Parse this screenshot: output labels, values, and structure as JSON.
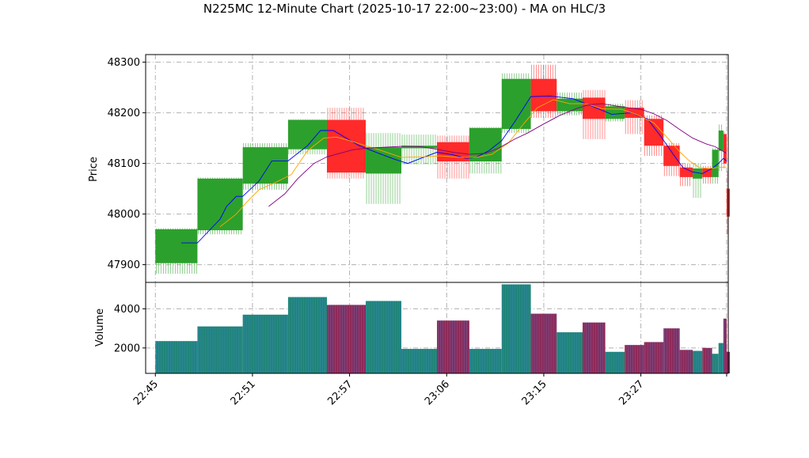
{
  "chart_data": {
    "type": "candlestick",
    "title": "N225MC 12-Minute Chart (2025-10-17 22:00~23:00) - MA on HLC/3",
    "price_panel": {
      "ylabel": "Price",
      "ylim": [
        47865,
        48315
      ],
      "yticks": [
        47900,
        48000,
        48100,
        48200,
        48300
      ],
      "ytick_labels": [
        "47900",
        "48000",
        "48100",
        "48200",
        "48300"
      ]
    },
    "volume_panel": {
      "ylabel": "Volume",
      "ylim": [
        700,
        5350
      ],
      "yticks": [
        2000,
        4000
      ],
      "ytick_labels": [
        "2000",
        "4000"
      ]
    },
    "xlim": [
      -3,
      177
    ],
    "xticks": [
      0,
      30,
      60,
      90,
      120,
      150
    ],
    "xtick_labels": [
      "22:45",
      "22:51",
      "22:57",
      "23:06",
      "23:15",
      "23:27"
    ],
    "grid": true,
    "colors": {
      "up": "#2ca02c",
      "down": "#ff2a2a",
      "volume_up": "#20847a",
      "volume_down": "#8c2a5a",
      "ma_short": "#0000ff",
      "ma_mid": "#ffa500",
      "ma_long": "#800080",
      "grid": "#b0b0b0"
    },
    "candles": [
      {
        "x0": 0,
        "x1": 13,
        "open": 47903,
        "close": 47970,
        "high": 47972,
        "low": 47882,
        "volume": 2350
      },
      {
        "x0": 13,
        "x1": 27,
        "open": 47968,
        "close": 48070,
        "high": 48072,
        "low": 47960,
        "volume": 3100
      },
      {
        "x0": 27,
        "x1": 41,
        "open": 48060,
        "close": 48132,
        "high": 48140,
        "low": 48048,
        "volume": 3700
      },
      {
        "x0": 41,
        "x1": 53,
        "open": 48128,
        "close": 48186,
        "high": 48187,
        "low": 48118,
        "volume": 4600
      },
      {
        "x0": 53,
        "x1": 65,
        "open": 48186,
        "close": 48082,
        "high": 48210,
        "low": 48070,
        "volume": 4200
      },
      {
        "x0": 65,
        "x1": 76,
        "open": 48080,
        "close": 48132,
        "high": 48160,
        "low": 48020,
        "volume": 4400
      },
      {
        "x0": 76,
        "x1": 87,
        "open": 48130,
        "close": 48135,
        "high": 48157,
        "low": 48098,
        "volume": 1950
      },
      {
        "x0": 87,
        "x1": 97,
        "open": 48142,
        "close": 48104,
        "high": 48155,
        "low": 48070,
        "volume": 3400
      },
      {
        "x0": 97,
        "x1": 107,
        "open": 48104,
        "close": 48170,
        "high": 48172,
        "low": 48080,
        "volume": 1950
      },
      {
        "x0": 107,
        "x1": 116,
        "open": 48168,
        "close": 48267,
        "high": 48278,
        "low": 48160,
        "volume": 5250
      },
      {
        "x0": 116,
        "x1": 124,
        "open": 48267,
        "close": 48203,
        "high": 48295,
        "low": 48190,
        "volume": 3750
      },
      {
        "x0": 124,
        "x1": 132,
        "open": 48203,
        "close": 48228,
        "high": 48240,
        "low": 48195,
        "volume": 2800
      },
      {
        "x0": 132,
        "x1": 139,
        "open": 48230,
        "close": 48188,
        "high": 48245,
        "low": 48148,
        "volume": 3300
      },
      {
        "x0": 139,
        "x1": 145,
        "open": 48188,
        "close": 48213,
        "high": 48218,
        "low": 48183,
        "volume": 1800
      },
      {
        "x0": 145,
        "x1": 151,
        "open": 48210,
        "close": 48190,
        "high": 48225,
        "low": 48158,
        "volume": 2150
      },
      {
        "x0": 151,
        "x1": 157,
        "open": 48188,
        "close": 48135,
        "high": 48195,
        "low": 48115,
        "volume": 2300
      },
      {
        "x0": 157,
        "x1": 162,
        "open": 48135,
        "close": 48095,
        "high": 48140,
        "low": 48075,
        "volume": 3000
      },
      {
        "x0": 162,
        "x1": 166,
        "open": 48092,
        "close": 48073,
        "high": 48100,
        "low": 48055,
        "volume": 1900
      },
      {
        "x0": 166,
        "x1": 169,
        "open": 48070,
        "close": 48090,
        "high": 48100,
        "low": 48032,
        "volume": 1850
      },
      {
        "x0": 169,
        "x1": 172,
        "open": 48090,
        "close": 48073,
        "high": 48095,
        "low": 48060,
        "volume": 2000
      },
      {
        "x0": 172,
        "x1": 174,
        "open": 48073,
        "close": 48127,
        "high": 48130,
        "low": 48060,
        "volume": 1700
      },
      {
        "x0": 174,
        "x1": 175.5,
        "open": 48125,
        "close": 48165,
        "high": 48177,
        "low": 48085,
        "volume": 2250
      },
      {
        "x0": 175.5,
        "x1": 176.5,
        "open": 48158,
        "close": 48100,
        "high": 48163,
        "low": 48090,
        "volume": 3500
      },
      {
        "x0": 176.5,
        "x1": 177.5,
        "open": 48050,
        "close": 47995,
        "high": 48085,
        "low": 47960,
        "volume": 1800
      }
    ],
    "moving_averages": [
      {
        "label": "short",
        "color": "#0000ff",
        "points": [
          [
            8,
            47943
          ],
          [
            13,
            47943
          ],
          [
            20,
            47990
          ],
          [
            22,
            48015
          ],
          [
            25,
            48035
          ],
          [
            27,
            48035
          ],
          [
            32,
            48065
          ],
          [
            36,
            48105
          ],
          [
            41,
            48105
          ],
          [
            47,
            48135
          ],
          [
            51,
            48165
          ],
          [
            55,
            48165
          ],
          [
            59,
            48150
          ],
          [
            63,
            48135
          ],
          [
            69,
            48120
          ],
          [
            74,
            48108
          ],
          [
            78,
            48100
          ],
          [
            82,
            48110
          ],
          [
            87,
            48122
          ],
          [
            92,
            48117
          ],
          [
            96,
            48110
          ],
          [
            99,
            48112
          ],
          [
            103,
            48125
          ],
          [
            107,
            48145
          ],
          [
            111,
            48182
          ],
          [
            116,
            48232
          ],
          [
            122,
            48233
          ],
          [
            129,
            48228
          ],
          [
            135,
            48213
          ],
          [
            141,
            48197
          ],
          [
            147,
            48200
          ],
          [
            152,
            48188
          ],
          [
            156,
            48155
          ],
          [
            160,
            48118
          ],
          [
            163,
            48092
          ],
          [
            166,
            48083
          ],
          [
            169,
            48080
          ],
          [
            172,
            48090
          ],
          [
            174,
            48100
          ],
          [
            175.5,
            48110
          ],
          [
            176.5,
            48105
          ]
        ]
      },
      {
        "label": "mid",
        "color": "#ffa500",
        "points": [
          [
            20,
            47975
          ],
          [
            25,
            48000
          ],
          [
            28,
            48022
          ],
          [
            32,
            48048
          ],
          [
            37,
            48062
          ],
          [
            42,
            48078
          ],
          [
            47,
            48125
          ],
          [
            52,
            48150
          ],
          [
            56,
            48152
          ],
          [
            60,
            48145
          ],
          [
            64,
            48137
          ],
          [
            70,
            48125
          ],
          [
            76,
            48112
          ],
          [
            83,
            48113
          ],
          [
            88,
            48115
          ],
          [
            94,
            48112
          ],
          [
            99,
            48112
          ],
          [
            104,
            48118
          ],
          [
            109,
            48140
          ],
          [
            114,
            48180
          ],
          [
            118,
            48210
          ],
          [
            123,
            48226
          ],
          [
            128,
            48218
          ],
          [
            133,
            48218
          ],
          [
            138,
            48208
          ],
          [
            144,
            48207
          ],
          [
            149,
            48196
          ],
          [
            154,
            48180
          ],
          [
            158,
            48152
          ],
          [
            162,
            48123
          ],
          [
            165,
            48105
          ],
          [
            168,
            48092
          ],
          [
            171,
            48090
          ],
          [
            174,
            48092
          ],
          [
            176.5,
            48093
          ]
        ]
      },
      {
        "label": "long",
        "color": "#800080",
        "points": [
          [
            35,
            48015
          ],
          [
            40,
            48040
          ],
          [
            44,
            48070
          ],
          [
            49,
            48100
          ],
          [
            53,
            48113
          ],
          [
            57,
            48120
          ],
          [
            61,
            48127
          ],
          [
            65,
            48130
          ],
          [
            71,
            48132
          ],
          [
            77,
            48134
          ],
          [
            82,
            48133
          ],
          [
            87,
            48128
          ],
          [
            92,
            48122
          ],
          [
            97,
            48118
          ],
          [
            102,
            48120
          ],
          [
            106,
            48130
          ],
          [
            111,
            48148
          ],
          [
            115,
            48160
          ],
          [
            120,
            48178
          ],
          [
            125,
            48195
          ],
          [
            130,
            48208
          ],
          [
            134,
            48216
          ],
          [
            138,
            48218
          ],
          [
            142,
            48214
          ],
          [
            146,
            48210
          ],
          [
            150,
            48207
          ],
          [
            154,
            48198
          ],
          [
            158,
            48185
          ],
          [
            162,
            48167
          ],
          [
            166,
            48150
          ],
          [
            170,
            48139
          ],
          [
            173,
            48133
          ],
          [
            176.5,
            48120
          ]
        ]
      }
    ]
  }
}
